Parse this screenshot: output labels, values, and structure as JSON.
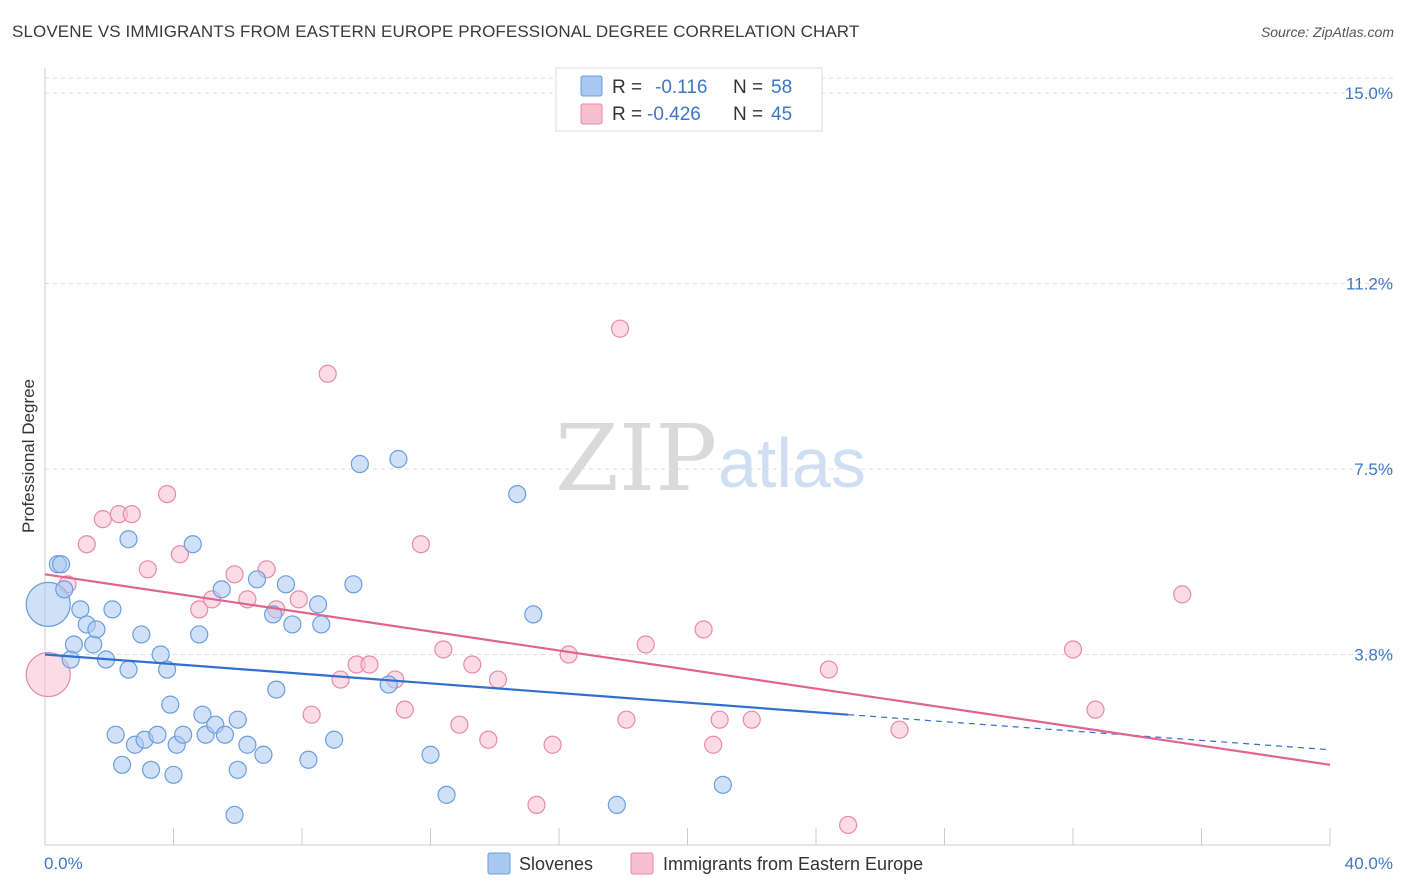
{
  "title": "SLOVENE VS IMMIGRANTS FROM EASTERN EUROPE PROFESSIONAL DEGREE CORRELATION CHART",
  "source": "Source: ZipAtlas.com",
  "watermark": {
    "part1": "ZIP",
    "part2": "atlas"
  },
  "colors": {
    "slovenes_fill": "#a9c8f0",
    "slovenes_stroke": "#6b9ee0",
    "slovenes_line": "#2f6fd0",
    "immigrants_fill": "#f7c0d1",
    "immigrants_stroke": "#e88aa8",
    "immigrants_line": "#e0648f",
    "tick_text": "#3d77c8",
    "grid": "#dddddd"
  },
  "legend": {
    "rows": [
      {
        "r_label": "R =",
        "r_value": "-0.116",
        "n_label": "N =",
        "n_value": "58"
      },
      {
        "r_label": "R =",
        "r_value": "-0.426",
        "n_label": "N =",
        "n_value": "45"
      }
    ]
  },
  "chart_data": {
    "type": "scatter",
    "title": "SLOVENE VS IMMIGRANTS FROM EASTERN EUROPE PROFESSIONAL DEGREE CORRELATION CHART",
    "xlabel": "",
    "ylabel": "Professional Degree",
    "xlim": [
      0,
      40
    ],
    "ylim": [
      0,
      15.5
    ],
    "x_tick_labels": [
      "0.0%",
      "40.0%"
    ],
    "y_ticks": [
      3.8,
      7.5,
      11.2,
      15.0
    ],
    "y_tick_labels": [
      "3.8%",
      "7.5%",
      "11.2%",
      "15.0%"
    ],
    "grid": "horizontal dashed",
    "legend_position": "top-center",
    "series": [
      {
        "name": "Slovenes",
        "r": -0.116,
        "n": 58,
        "trend": {
          "x0": 0,
          "y0": 3.8,
          "x1": 25,
          "y1": 2.6,
          "extended_x1": 40,
          "extended_y1": 1.9
        },
        "points": [
          [
            0.1,
            4.8,
            "L"
          ],
          [
            0.4,
            5.6
          ],
          [
            0.5,
            5.6
          ],
          [
            0.6,
            5.1
          ],
          [
            0.8,
            3.7
          ],
          [
            0.9,
            4.0
          ],
          [
            1.1,
            4.7
          ],
          [
            1.3,
            4.4
          ],
          [
            1.5,
            4.0
          ],
          [
            1.6,
            4.3
          ],
          [
            1.9,
            3.7
          ],
          [
            2.1,
            4.7
          ],
          [
            2.2,
            2.2
          ],
          [
            2.4,
            1.6
          ],
          [
            2.6,
            3.5
          ],
          [
            2.6,
            6.1
          ],
          [
            2.8,
            2.0
          ],
          [
            3.0,
            4.2
          ],
          [
            3.1,
            2.1
          ],
          [
            3.3,
            1.5
          ],
          [
            3.5,
            2.2
          ],
          [
            3.6,
            3.8
          ],
          [
            3.8,
            3.5
          ],
          [
            3.9,
            2.8
          ],
          [
            4.0,
            1.4
          ],
          [
            4.1,
            2.0
          ],
          [
            4.3,
            2.2
          ],
          [
            4.6,
            6.0
          ],
          [
            4.8,
            4.2
          ],
          [
            4.9,
            2.6
          ],
          [
            5.0,
            2.2
          ],
          [
            5.3,
            2.4
          ],
          [
            5.5,
            5.1
          ],
          [
            5.6,
            2.2
          ],
          [
            5.9,
            0.6
          ],
          [
            6.0,
            1.5
          ],
          [
            6.0,
            2.5
          ],
          [
            6.3,
            2.0
          ],
          [
            6.6,
            5.3
          ],
          [
            6.8,
            1.8
          ],
          [
            7.1,
            4.6
          ],
          [
            7.2,
            3.1
          ],
          [
            7.5,
            5.2
          ],
          [
            7.7,
            4.4
          ],
          [
            8.2,
            1.7
          ],
          [
            8.5,
            4.8
          ],
          [
            8.6,
            4.4
          ],
          [
            9.0,
            2.1
          ],
          [
            9.6,
            5.2
          ],
          [
            9.8,
            7.6
          ],
          [
            10.7,
            3.2
          ],
          [
            11.0,
            7.7
          ],
          [
            12.0,
            1.8
          ],
          [
            12.5,
            1.0
          ],
          [
            14.7,
            7.0
          ],
          [
            15.2,
            4.6
          ],
          [
            17.8,
            0.8
          ],
          [
            21.1,
            1.2
          ]
        ]
      },
      {
        "name": "Immigrants from Eastern Europe",
        "r": -0.426,
        "n": 45,
        "trend": {
          "x0": 0,
          "y0": 5.4,
          "x1": 40,
          "y1": 1.6
        },
        "points": [
          [
            0.1,
            3.4,
            "L"
          ],
          [
            0.7,
            5.2
          ],
          [
            1.3,
            6.0
          ],
          [
            1.8,
            6.5
          ],
          [
            2.3,
            6.6
          ],
          [
            2.7,
            6.6
          ],
          [
            3.2,
            5.5
          ],
          [
            3.8,
            7.0
          ],
          [
            4.2,
            5.8
          ],
          [
            4.8,
            4.7
          ],
          [
            5.2,
            4.9
          ],
          [
            5.9,
            5.4
          ],
          [
            6.3,
            4.9
          ],
          [
            6.9,
            5.5
          ],
          [
            7.2,
            4.7
          ],
          [
            7.9,
            4.9
          ],
          [
            8.3,
            2.6
          ],
          [
            8.8,
            9.4
          ],
          [
            9.2,
            3.3
          ],
          [
            9.7,
            3.6
          ],
          [
            10.1,
            3.6
          ],
          [
            10.9,
            3.3
          ],
          [
            11.2,
            2.7
          ],
          [
            11.7,
            6.0
          ],
          [
            12.4,
            3.9
          ],
          [
            12.9,
            2.4
          ],
          [
            13.3,
            3.6
          ],
          [
            13.8,
            2.1
          ],
          [
            14.1,
            3.3
          ],
          [
            15.3,
            0.8
          ],
          [
            15.8,
            2.0
          ],
          [
            16.3,
            3.8
          ],
          [
            17.9,
            10.3
          ],
          [
            18.1,
            2.5
          ],
          [
            18.7,
            4.0
          ],
          [
            20.5,
            4.3
          ],
          [
            20.8,
            2.0
          ],
          [
            21.0,
            2.5
          ],
          [
            22.0,
            2.5
          ],
          [
            24.4,
            3.5
          ],
          [
            25.0,
            0.4
          ],
          [
            26.6,
            2.3
          ],
          [
            32.0,
            3.9
          ],
          [
            32.7,
            2.7
          ],
          [
            35.4,
            5.0
          ]
        ]
      }
    ]
  },
  "bottom_legend": [
    {
      "label": "Slovenes"
    },
    {
      "label": "Immigrants from Eastern Europe"
    }
  ]
}
